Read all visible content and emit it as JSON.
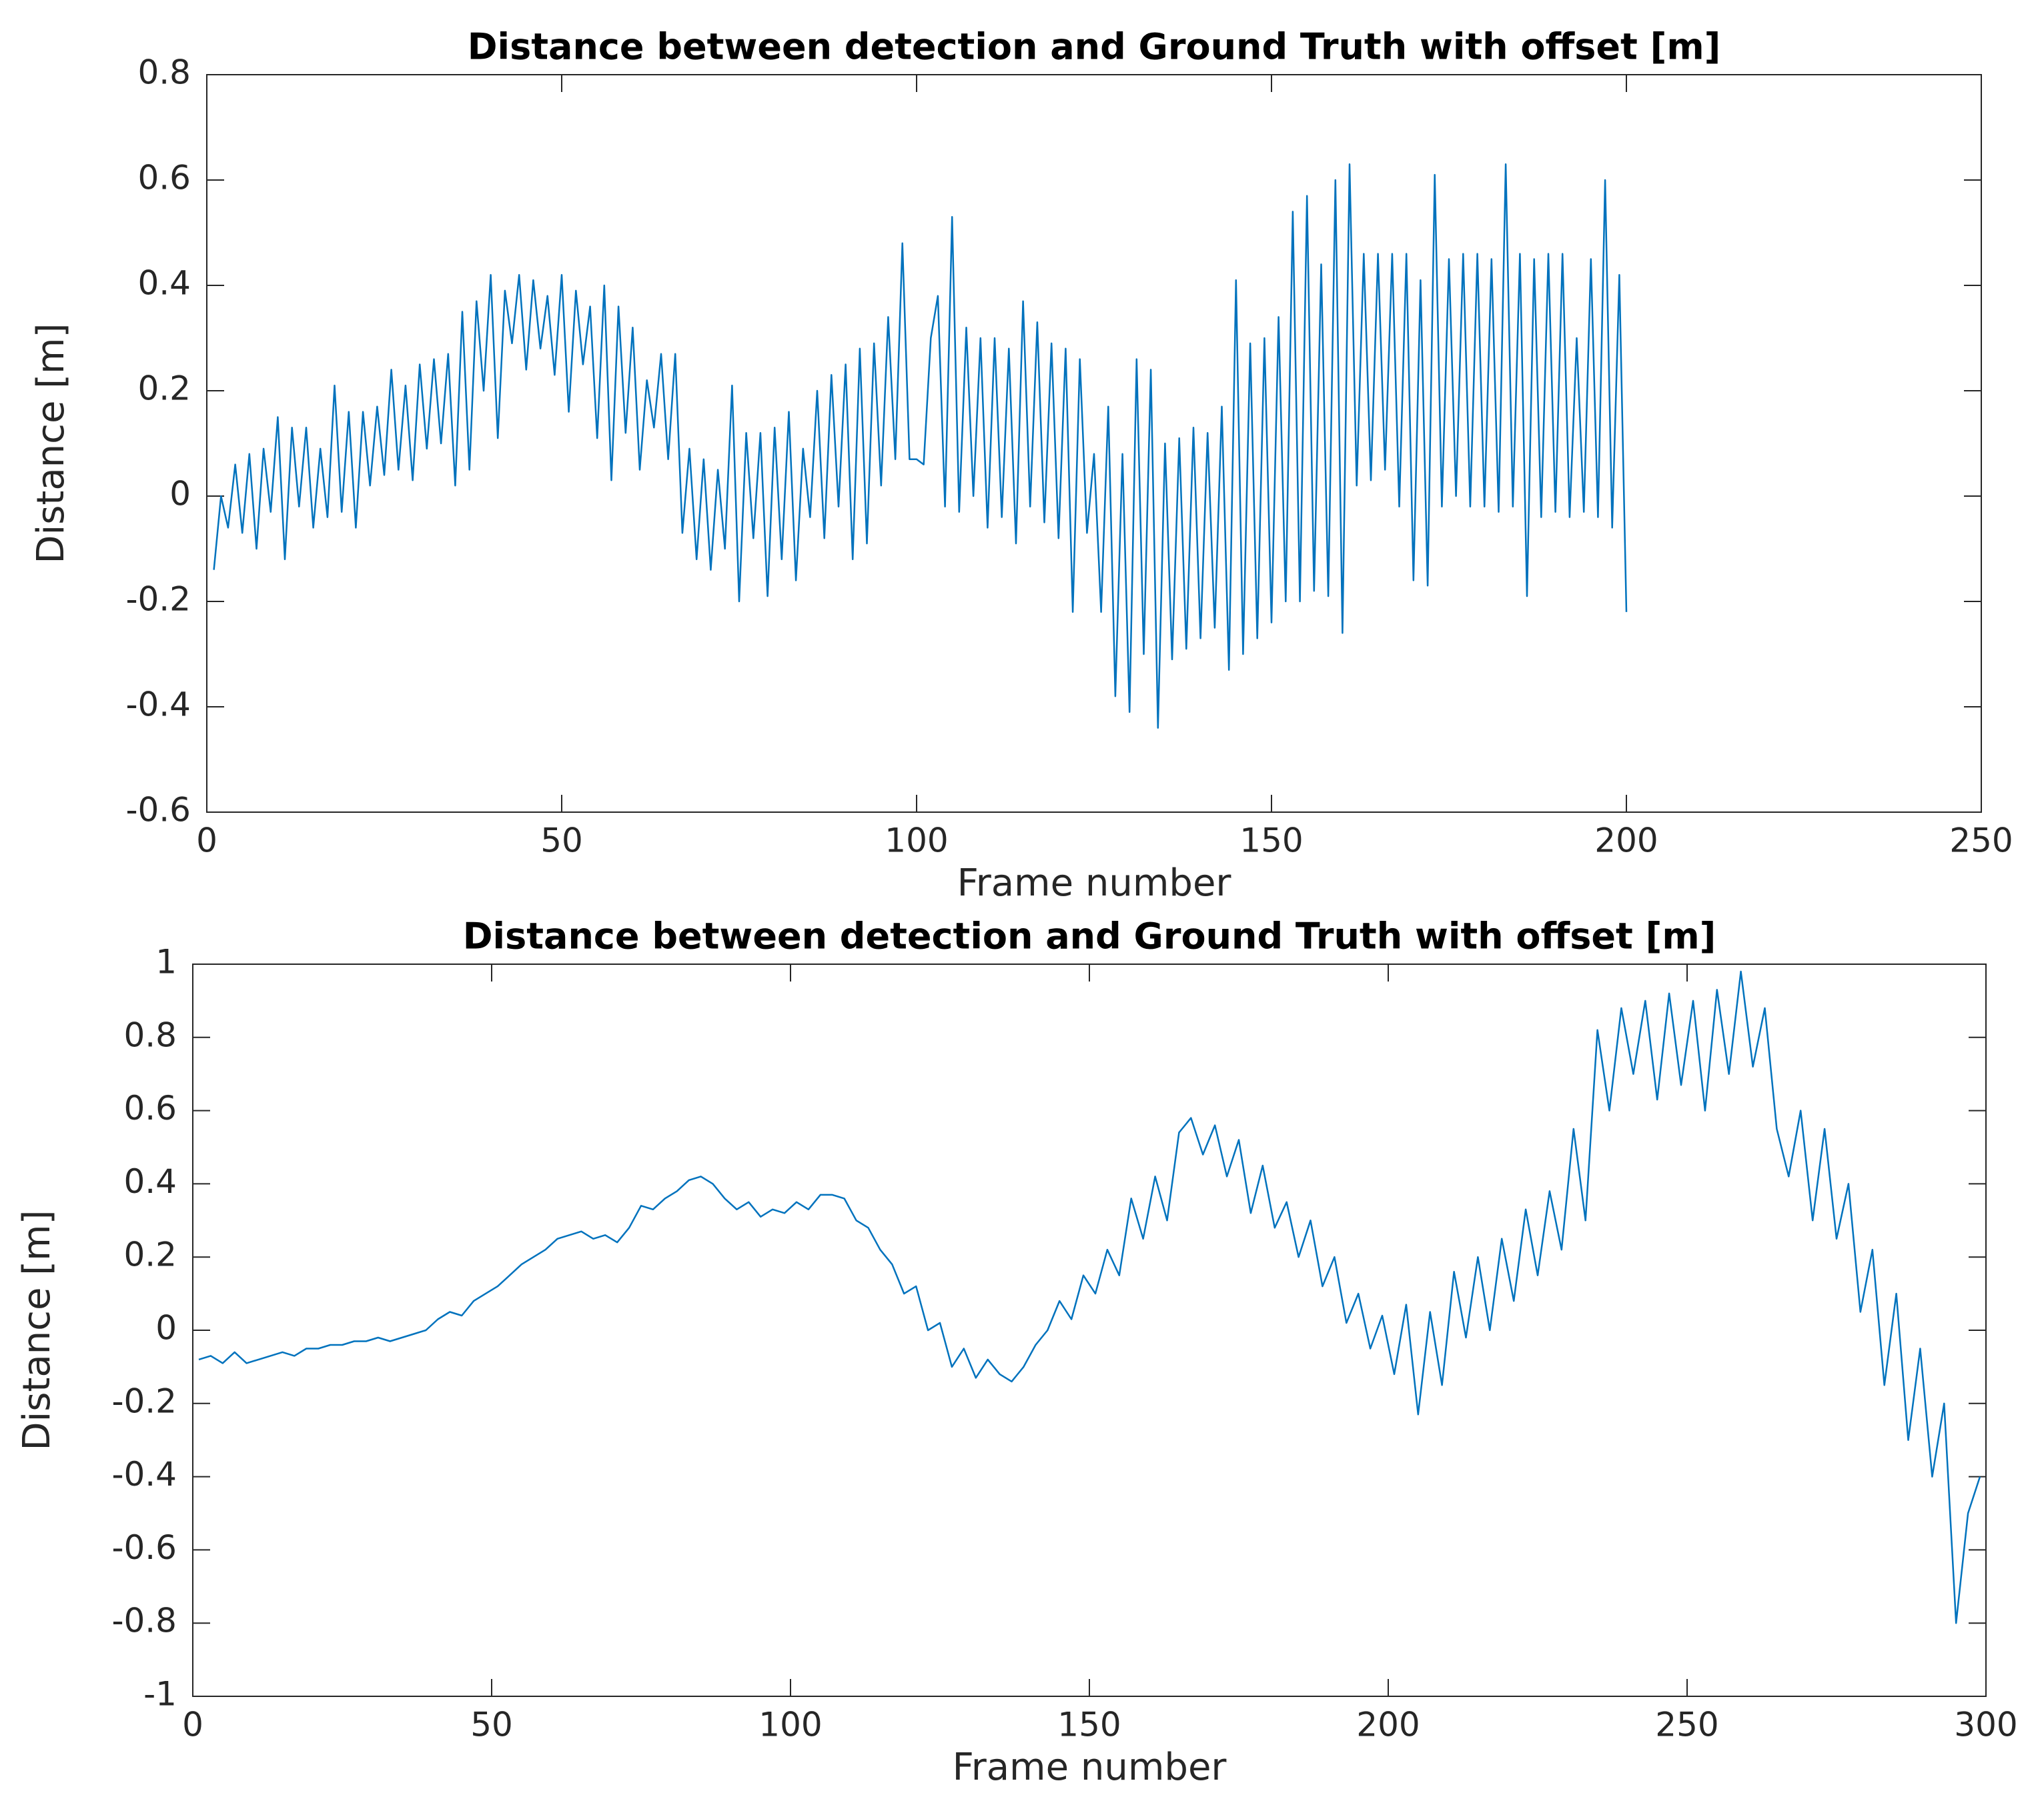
{
  "chart_data": [
    {
      "type": "line",
      "title": "Distance between detection and Ground Truth with offset [m]",
      "x_label": "Frame number",
      "y_label": "Distance [m]",
      "xlim": [
        0,
        250
      ],
      "xticks": [
        0,
        50,
        100,
        150,
        200,
        250
      ],
      "ylim": [
        -0.6,
        0.8
      ],
      "yticks": [
        -0.6,
        -0.4,
        -0.2,
        0,
        0.2,
        0.4,
        0.6,
        0.8
      ],
      "series": [
        {
          "color": "#0072bd",
          "x": [
            1,
            2,
            3,
            4,
            5,
            6,
            7,
            8,
            9,
            10,
            11,
            12,
            13,
            14,
            15,
            16,
            17,
            18,
            19,
            20,
            21,
            22,
            23,
            24,
            25,
            26,
            27,
            28,
            29,
            30,
            31,
            32,
            33,
            34,
            35,
            36,
            37,
            38,
            39,
            40,
            41,
            42,
            43,
            44,
            45,
            46,
            47,
            48,
            49,
            50,
            51,
            52,
            53,
            54,
            55,
            56,
            57,
            58,
            59,
            60,
            61,
            62,
            63,
            64,
            65,
            66,
            67,
            68,
            69,
            70,
            71,
            72,
            73,
            74,
            75,
            76,
            77,
            78,
            79,
            80,
            81,
            82,
            83,
            84,
            85,
            86,
            87,
            88,
            89,
            90,
            91,
            92,
            93,
            94,
            95,
            96,
            97,
            98,
            99,
            100,
            101,
            102,
            103,
            104,
            105,
            106,
            107,
            108,
            109,
            110,
            111,
            112,
            113,
            114,
            115,
            116,
            117,
            118,
            119,
            120,
            121,
            122,
            123,
            124,
            125,
            126,
            127,
            128,
            129,
            130,
            131,
            132,
            133,
            134,
            135,
            136,
            137,
            138,
            139,
            140,
            141,
            142,
            143,
            144,
            145,
            146,
            147,
            148,
            149,
            150,
            151,
            152,
            153,
            154,
            155,
            156,
            157,
            158,
            159,
            160,
            161,
            162,
            163,
            164,
            165,
            166,
            167,
            168,
            169,
            170,
            171,
            172,
            173,
            174,
            175,
            176,
            177,
            178,
            179,
            180,
            181,
            182,
            183,
            184,
            185,
            186,
            187,
            188,
            189,
            190,
            191,
            192,
            193,
            194,
            195,
            196,
            197,
            198,
            199,
            200
          ],
          "values": [
            -0.14,
            0.0,
            -0.06,
            0.06,
            -0.07,
            0.08,
            -0.1,
            0.09,
            -0.03,
            0.15,
            -0.12,
            0.13,
            -0.02,
            0.13,
            -0.06,
            0.09,
            -0.04,
            0.21,
            -0.03,
            0.16,
            -0.06,
            0.16,
            0.02,
            0.17,
            0.04,
            0.24,
            0.05,
            0.21,
            0.03,
            0.25,
            0.09,
            0.26,
            0.1,
            0.27,
            0.02,
            0.35,
            0.05,
            0.37,
            0.2,
            0.42,
            0.11,
            0.39,
            0.29,
            0.42,
            0.24,
            0.41,
            0.28,
            0.38,
            0.23,
            0.42,
            0.16,
            0.39,
            0.25,
            0.36,
            0.11,
            0.4,
            0.03,
            0.36,
            0.12,
            0.32,
            0.05,
            0.22,
            0.13,
            0.27,
            0.07,
            0.27,
            -0.07,
            0.09,
            -0.12,
            0.07,
            -0.14,
            0.05,
            -0.1,
            0.21,
            -0.2,
            0.12,
            -0.08,
            0.12,
            -0.19,
            0.13,
            -0.12,
            0.16,
            -0.16,
            0.09,
            -0.04,
            0.2,
            -0.08,
            0.23,
            -0.02,
            0.25,
            -0.12,
            0.28,
            -0.09,
            0.29,
            0.02,
            0.34,
            0.07,
            0.48,
            0.07,
            0.07,
            0.06,
            0.3,
            0.38,
            -0.02,
            0.53,
            -0.03,
            0.32,
            0.0,
            0.3,
            -0.06,
            0.3,
            -0.04,
            0.28,
            -0.09,
            0.37,
            -0.02,
            0.33,
            -0.05,
            0.29,
            -0.08,
            0.28,
            -0.22,
            0.26,
            -0.07,
            0.08,
            -0.22,
            0.17,
            -0.38,
            0.08,
            -0.41,
            0.26,
            -0.3,
            0.24,
            -0.44,
            0.1,
            -0.31,
            0.11,
            -0.29,
            0.13,
            -0.27,
            0.12,
            -0.25,
            0.17,
            -0.33,
            0.41,
            -0.3,
            0.29,
            -0.27,
            0.3,
            -0.24,
            0.34,
            -0.2,
            0.54,
            -0.2,
            0.57,
            -0.18,
            0.44,
            -0.19,
            0.6,
            -0.26,
            0.63,
            0.02,
            0.46,
            0.03,
            0.46,
            0.05,
            0.46,
            -0.02,
            0.46,
            -0.16,
            0.41,
            -0.17,
            0.61,
            -0.02,
            0.45,
            0.0,
            0.46,
            -0.02,
            0.46,
            -0.02,
            0.45,
            -0.03,
            0.63,
            -0.02,
            0.46,
            -0.19,
            0.45,
            -0.04,
            0.46,
            -0.03,
            0.46,
            -0.04,
            0.3,
            -0.03,
            0.45,
            -0.04,
            0.6,
            -0.06,
            0.42,
            -0.22
          ]
        }
      ]
    },
    {
      "type": "line",
      "title": "Distance between detection and Ground Truth with offset [m]",
      "x_label": "Frame number",
      "y_label": "Distance [m]",
      "xlim": [
        0,
        300
      ],
      "xticks": [
        0,
        50,
        100,
        150,
        200,
        250,
        300
      ],
      "ylim": [
        -1,
        1
      ],
      "yticks": [
        -1,
        -0.8,
        -0.6,
        -0.4,
        -0.2,
        0,
        0.2,
        0.4,
        0.6,
        0.8,
        1
      ],
      "series": [
        {
          "color": "#0072bd",
          "x": [
            1,
            3,
            5,
            7,
            9,
            11,
            13,
            15,
            17,
            19,
            21,
            23,
            25,
            27,
            29,
            31,
            33,
            35,
            37,
            39,
            41,
            43,
            45,
            47,
            49,
            51,
            53,
            55,
            57,
            59,
            61,
            63,
            65,
            67,
            69,
            71,
            73,
            75,
            77,
            79,
            81,
            83,
            85,
            87,
            89,
            91,
            93,
            95,
            97,
            99,
            101,
            103,
            105,
            107,
            109,
            111,
            113,
            115,
            117,
            119,
            121,
            123,
            125,
            127,
            129,
            131,
            133,
            135,
            137,
            139,
            141,
            143,
            145,
            147,
            149,
            151,
            153,
            155,
            157,
            159,
            161,
            163,
            165,
            167,
            169,
            171,
            173,
            175,
            177,
            179,
            181,
            183,
            185,
            187,
            189,
            191,
            193,
            195,
            197,
            199,
            201,
            203,
            205,
            207,
            209,
            211,
            213,
            215,
            217,
            219,
            221,
            223,
            225,
            227,
            229,
            231,
            233,
            235,
            237,
            239,
            241,
            243,
            245,
            247,
            249,
            251,
            253,
            255,
            257,
            259,
            261,
            263,
            265,
            267,
            269,
            271,
            273,
            275,
            277,
            279,
            281,
            283,
            285,
            287,
            289,
            291,
            293,
            295,
            297,
            299
          ],
          "values": [
            -0.08,
            -0.07,
            -0.09,
            -0.06,
            -0.09,
            -0.08,
            -0.07,
            -0.06,
            -0.07,
            -0.05,
            -0.05,
            -0.04,
            -0.04,
            -0.03,
            -0.03,
            -0.02,
            -0.03,
            -0.02,
            -0.01,
            0.0,
            0.03,
            0.05,
            0.04,
            0.08,
            0.1,
            0.12,
            0.15,
            0.18,
            0.2,
            0.22,
            0.25,
            0.26,
            0.27,
            0.25,
            0.26,
            0.24,
            0.28,
            0.34,
            0.33,
            0.36,
            0.38,
            0.41,
            0.42,
            0.4,
            0.36,
            0.33,
            0.35,
            0.31,
            0.33,
            0.32,
            0.35,
            0.33,
            0.37,
            0.37,
            0.36,
            0.3,
            0.28,
            0.22,
            0.18,
            0.1,
            0.12,
            0.0,
            0.02,
            -0.1,
            -0.05,
            -0.13,
            -0.08,
            -0.12,
            -0.14,
            -0.1,
            -0.04,
            0.0,
            0.08,
            0.03,
            0.15,
            0.1,
            0.22,
            0.15,
            0.36,
            0.25,
            0.42,
            0.3,
            0.54,
            0.58,
            0.48,
            0.56,
            0.42,
            0.52,
            0.32,
            0.45,
            0.28,
            0.35,
            0.2,
            0.3,
            0.12,
            0.2,
            0.02,
            0.1,
            -0.05,
            0.04,
            -0.12,
            0.07,
            -0.23,
            0.05,
            -0.15,
            0.16,
            -0.02,
            0.2,
            0.0,
            0.25,
            0.08,
            0.33,
            0.15,
            0.38,
            0.22,
            0.55,
            0.3,
            0.82,
            0.6,
            0.88,
            0.7,
            0.9,
            0.63,
            0.92,
            0.67,
            0.9,
            0.6,
            0.93,
            0.7,
            0.98,
            0.72,
            0.88,
            0.55,
            0.42,
            0.6,
            0.3,
            0.55,
            0.25,
            0.4,
            0.05,
            0.22,
            -0.15,
            0.1,
            -0.3,
            -0.05,
            -0.4,
            -0.2,
            -0.8,
            -0.5,
            -0.4
          ]
        }
      ]
    }
  ]
}
